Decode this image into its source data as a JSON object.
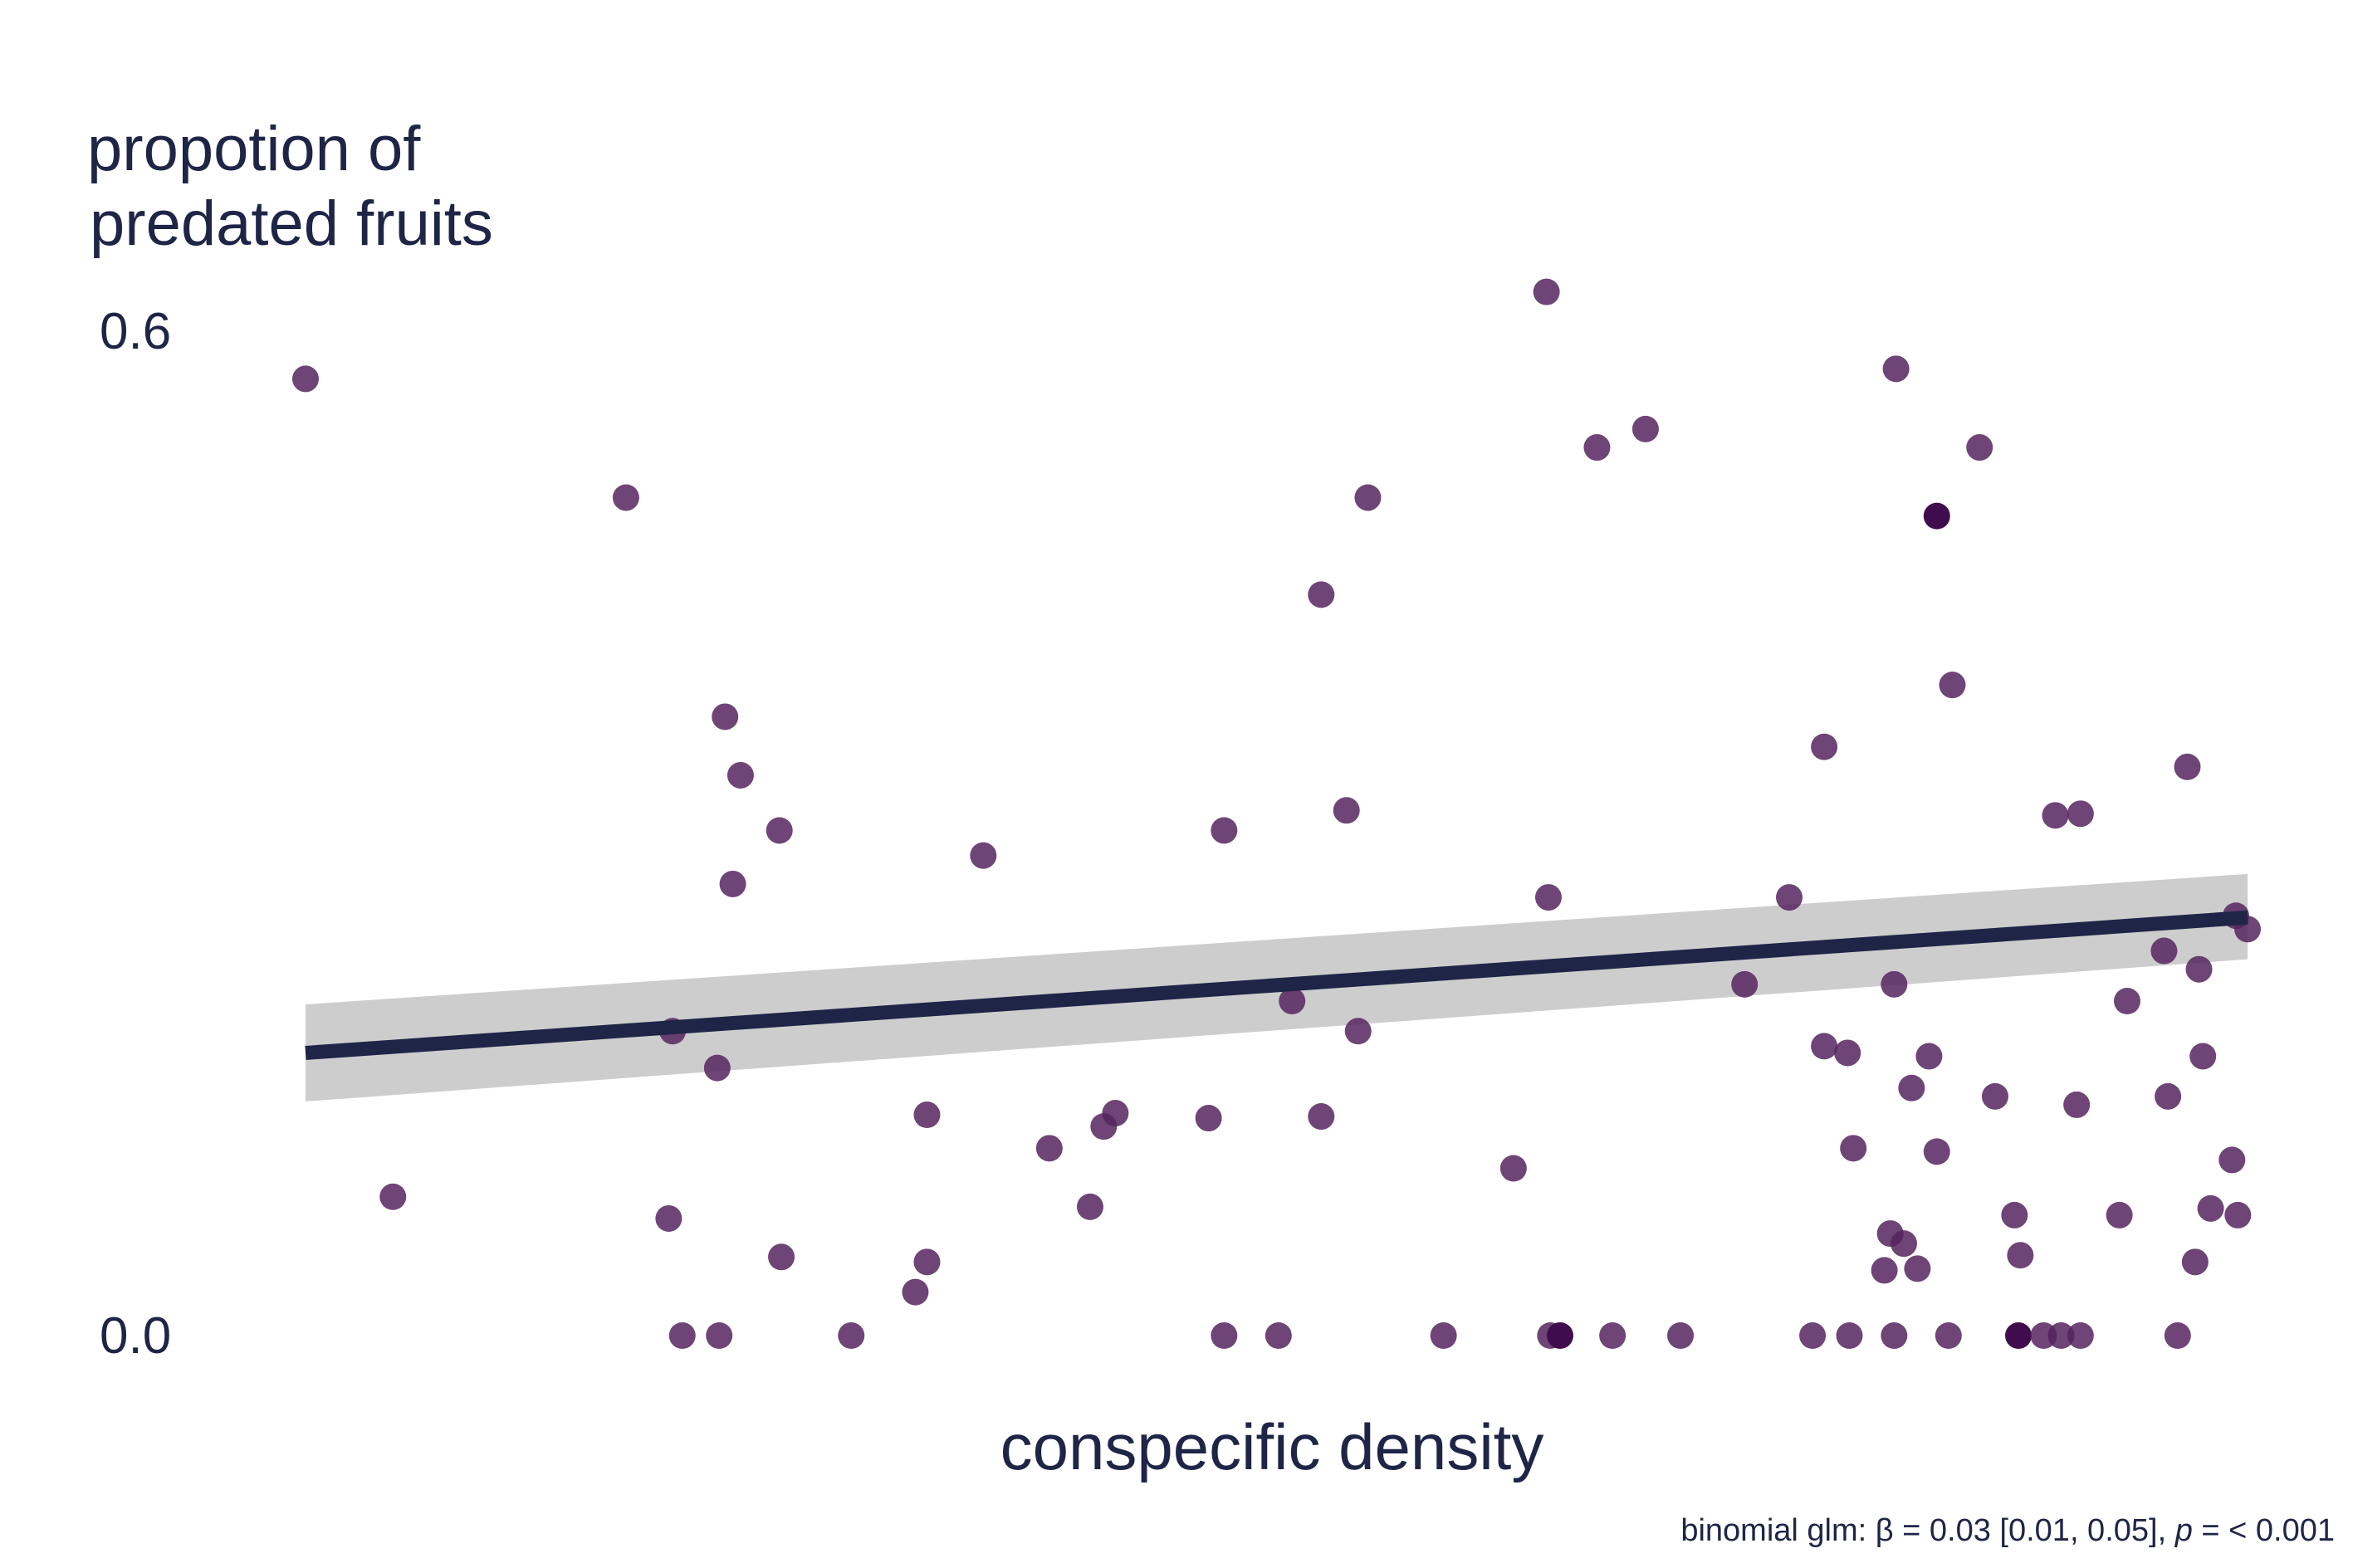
{
  "chart_data": {
    "type": "scatter",
    "ylabel_lines": [
      "propotion of",
      "predated fruits"
    ],
    "xlabel": "conspecific density",
    "caption": {
      "prefix": "binomial glm: β = 0.03 [0.01, 0.05], ",
      "p_symbol": "p",
      "suffix": " = < 0.001"
    },
    "y_ticks": [
      "0.0",
      "0.6"
    ],
    "y_tick_values": [
      0.0,
      0.6
    ],
    "ylim": [
      0.0,
      0.6
    ],
    "xlim": [
      0,
      100
    ],
    "x_ticks_shown": false,
    "grid": false,
    "colors": {
      "points": "#55245e",
      "line": "#1f2547",
      "ribbon": "#c4c4c4",
      "text": "#1f2547"
    },
    "point_opacity": 0.85,
    "fit": {
      "x": [
        0,
        100
      ],
      "y": [
        0.169,
        0.25
      ],
      "ci_lower": [
        0.14,
        0.225
      ],
      "ci_upper": [
        0.198,
        0.276
      ]
    },
    "points": [
      {
        "x": 0.0,
        "y": 0.572
      },
      {
        "x": 4.5,
        "y": 0.083
      },
      {
        "x": 16.5,
        "y": 0.501
      },
      {
        "x": 18.9,
        "y": 0.182
      },
      {
        "x": 18.7,
        "y": 0.07
      },
      {
        "x": 21.2,
        "y": 0.16
      },
      {
        "x": 21.6,
        "y": 0.37
      },
      {
        "x": 22.4,
        "y": 0.335
      },
      {
        "x": 22.0,
        "y": 0.27
      },
      {
        "x": 24.4,
        "y": 0.302
      },
      {
        "x": 24.5,
        "y": 0.047
      },
      {
        "x": 19.4,
        "y": 0.0
      },
      {
        "x": 21.3,
        "y": 0.0
      },
      {
        "x": 28.1,
        "y": 0.0
      },
      {
        "x": 31.4,
        "y": 0.026
      },
      {
        "x": 32.0,
        "y": 0.044
      },
      {
        "x": 32.0,
        "y": 0.132
      },
      {
        "x": 34.9,
        "y": 0.287
      },
      {
        "x": 38.3,
        "y": 0.112
      },
      {
        "x": 40.4,
        "y": 0.077
      },
      {
        "x": 41.1,
        "y": 0.125
      },
      {
        "x": 41.7,
        "y": 0.133
      },
      {
        "x": 46.5,
        "y": 0.13
      },
      {
        "x": 47.3,
        "y": 0.302
      },
      {
        "x": 47.3,
        "y": 0.0
      },
      {
        "x": 50.1,
        "y": 0.0
      },
      {
        "x": 50.8,
        "y": 0.2
      },
      {
        "x": 52.3,
        "y": 0.443
      },
      {
        "x": 52.3,
        "y": 0.131
      },
      {
        "x": 53.6,
        "y": 0.314
      },
      {
        "x": 54.2,
        "y": 0.182
      },
      {
        "x": 54.7,
        "y": 0.501
      },
      {
        "x": 58.6,
        "y": 0.0
      },
      {
        "x": 62.2,
        "y": 0.1
      },
      {
        "x": 63.9,
        "y": 0.624
      },
      {
        "x": 64.0,
        "y": 0.262
      },
      {
        "x": 64.1,
        "y": 0.0
      },
      {
        "x": 64.6,
        "y": 0.0,
        "dark": true
      },
      {
        "x": 66.5,
        "y": 0.531
      },
      {
        "x": 67.3,
        "y": 0.0
      },
      {
        "x": 69.0,
        "y": 0.542
      },
      {
        "x": 70.8,
        "y": 0.0
      },
      {
        "x": 74.1,
        "y": 0.21
      },
      {
        "x": 76.4,
        "y": 0.262
      },
      {
        "x": 78.2,
        "y": 0.352
      },
      {
        "x": 78.2,
        "y": 0.173
      },
      {
        "x": 77.6,
        "y": 0.0
      },
      {
        "x": 79.4,
        "y": 0.169
      },
      {
        "x": 79.7,
        "y": 0.112
      },
      {
        "x": 79.5,
        "y": 0.0
      },
      {
        "x": 81.8,
        "y": 0.21
      },
      {
        "x": 81.9,
        "y": 0.578
      },
      {
        "x": 81.6,
        "y": 0.061
      },
      {
        "x": 81.3,
        "y": 0.039
      },
      {
        "x": 82.3,
        "y": 0.055
      },
      {
        "x": 81.8,
        "y": 0.0
      },
      {
        "x": 82.7,
        "y": 0.148
      },
      {
        "x": 83.0,
        "y": 0.04
      },
      {
        "x": 83.6,
        "y": 0.167
      },
      {
        "x": 84.0,
        "y": 0.11
      },
      {
        "x": 84.0,
        "y": 0.49,
        "dark": true
      },
      {
        "x": 84.8,
        "y": 0.389
      },
      {
        "x": 84.6,
        "y": 0.0
      },
      {
        "x": 86.2,
        "y": 0.531
      },
      {
        "x": 87.0,
        "y": 0.143
      },
      {
        "x": 88.0,
        "y": 0.072
      },
      {
        "x": 88.3,
        "y": 0.048
      },
      {
        "x": 88.2,
        "y": 0.0,
        "dark": true
      },
      {
        "x": 89.5,
        "y": 0.0
      },
      {
        "x": 90.1,
        "y": 0.311
      },
      {
        "x": 90.4,
        "y": 0.0
      },
      {
        "x": 91.4,
        "y": 0.312
      },
      {
        "x": 91.2,
        "y": 0.138
      },
      {
        "x": 91.4,
        "y": 0.0
      },
      {
        "x": 93.4,
        "y": 0.072
      },
      {
        "x": 93.8,
        "y": 0.2
      },
      {
        "x": 95.7,
        "y": 0.23
      },
      {
        "x": 95.9,
        "y": 0.143
      },
      {
        "x": 96.9,
        "y": 0.34
      },
      {
        "x": 96.4,
        "y": 0.0
      },
      {
        "x": 97.5,
        "y": 0.219
      },
      {
        "x": 97.3,
        "y": 0.044
      },
      {
        "x": 97.7,
        "y": 0.167
      },
      {
        "x": 98.1,
        "y": 0.076
      },
      {
        "x": 99.2,
        "y": 0.105
      },
      {
        "x": 99.5,
        "y": 0.072
      },
      {
        "x": 99.4,
        "y": 0.251
      },
      {
        "x": 100.0,
        "y": 0.243
      }
    ]
  }
}
